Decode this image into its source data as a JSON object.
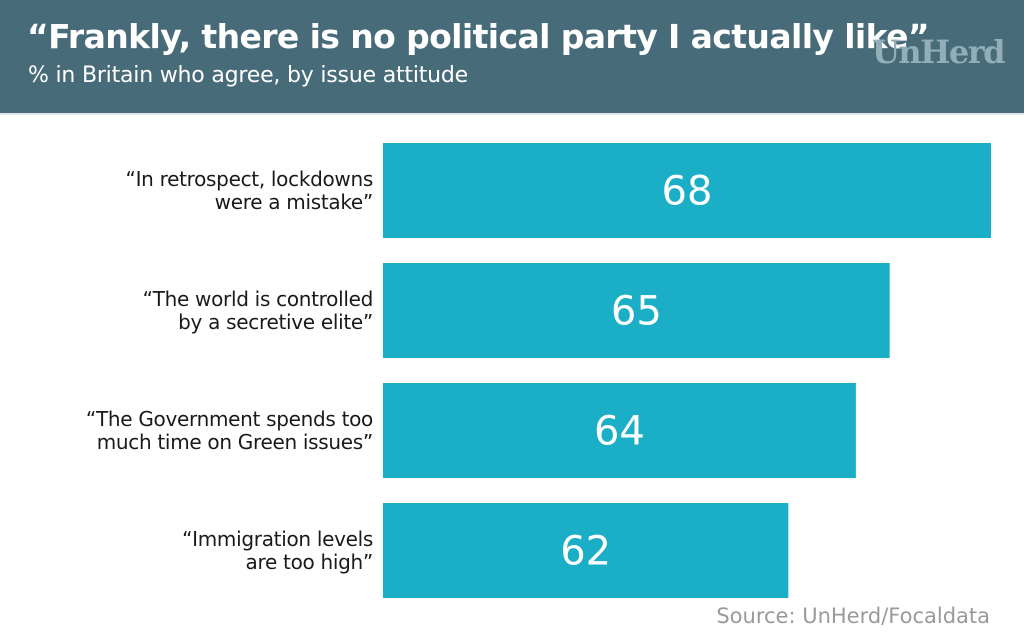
{
  "header": {
    "title": "“Frankly, there is no political party I actually like”",
    "subtitle": "% in Britain who agree, by issue attitude",
    "logo": "UnHerd",
    "background": "#476b78"
  },
  "source": "Source: UnHerd/Focaldata",
  "chart_data": {
    "type": "bar",
    "orientation": "horizontal",
    "title": "“Frankly, there is no political party I actually like”",
    "subtitle": "% in Britain who agree, by issue attitude",
    "xlabel": "",
    "ylabel": "",
    "xlim": [
      50,
      68
    ],
    "grid": false,
    "legend": "none",
    "bar_color": "#1aafc6",
    "categories": [
      [
        "“In retrospect, lockdowns",
        "were a mistake”"
      ],
      [
        "“The world is controlled",
        "by a secretive elite”"
      ],
      [
        "“The Government spends too",
        "much time on Green issues”"
      ],
      [
        "“Immigration levels",
        "are too high”"
      ]
    ],
    "values": [
      68,
      65,
      64,
      62
    ]
  }
}
